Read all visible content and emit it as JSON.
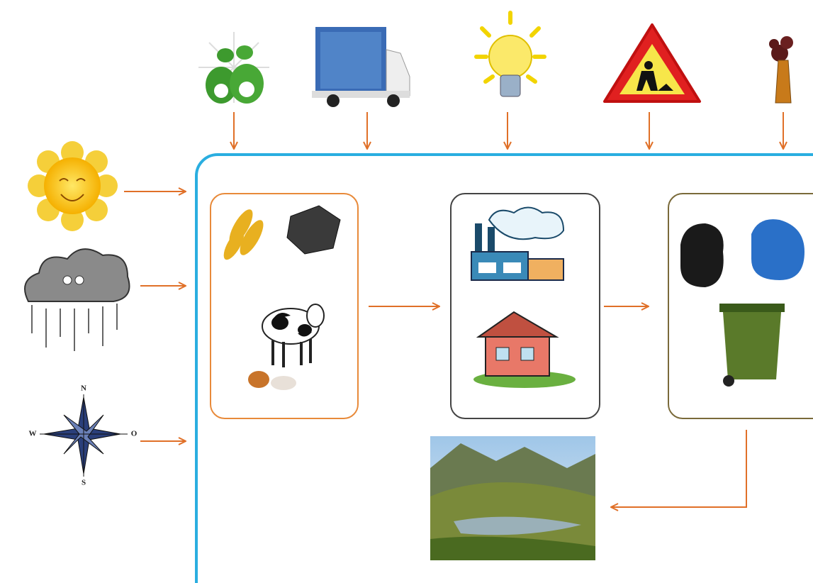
{
  "compass": {
    "north": "N",
    "west": "W",
    "east": "O",
    "south": "S"
  }
}
